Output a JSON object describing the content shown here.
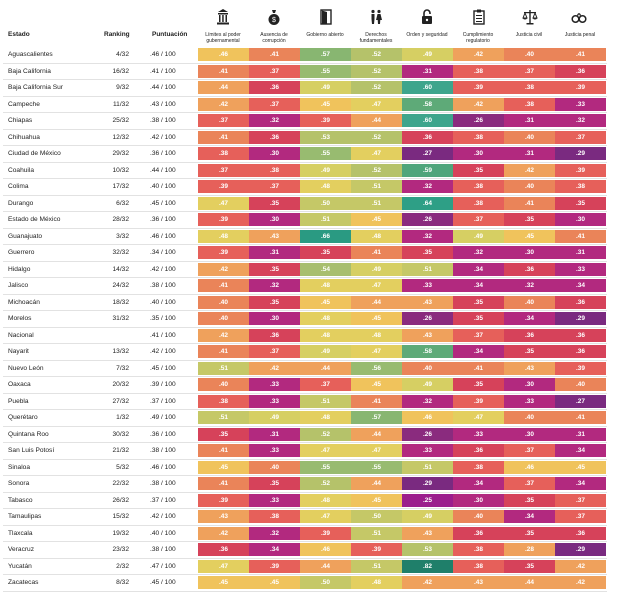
{
  "headers": {
    "estado": "Estado",
    "ranking": "Ranking",
    "puntuacion": "Puntuación"
  },
  "columns": [
    {
      "icon": "government-building-icon",
      "name": "Límites al poder gubernamental"
    },
    {
      "icon": "money-bag-icon",
      "name": "Ausencia de corrupción"
    },
    {
      "icon": "open-door-icon",
      "name": "Gobierno abierto"
    },
    {
      "icon": "people-icon",
      "name": "Derechos fundamentales"
    },
    {
      "icon": "padlock-icon",
      "name": "Orden y seguridad"
    },
    {
      "icon": "clipboard-checklist-icon",
      "name": "Cumplimiento regulatorio"
    },
    {
      "icon": "scales-icon",
      "name": "Justicia civil"
    },
    {
      "icon": "handcuffs-icon",
      "name": "Justicia penal"
    }
  ],
  "palette": {
    "0.25": "#9b1d8c",
    "0.26": "#8a2b7e",
    "0.27": "#7a2a80",
    "0.29": "#7a2a80",
    "0.30": "#b2297f",
    "0.31": "#b2297f",
    "0.32": "#b2297f",
    "0.33": "#b2297f",
    "0.34": "#b2297f",
    "0.35": "#d6425a",
    "0.36": "#d6425a",
    "0.37": "#e6605a",
    "0.38": "#e6605a",
    "0.39": "#e6605a",
    "0.40": "#ea8459",
    "0.41": "#ea8459",
    "0.42": "#efa15c",
    "0.43": "#efa15c",
    "0.44": "#efa15c",
    "0.45": "#f0c35c",
    "0.46": "#f0c35c",
    "0.47": "#e3cf5f",
    "0.48": "#e3cf5f",
    "0.49": "#d6cf63",
    "0.50": "#c5c867",
    "0.51": "#c5c867",
    "0.52": "#b5c26a",
    "0.53": "#b5c26a",
    "0.54": "#a8be6e",
    "0.55": "#98bb70",
    "0.56": "#98bb70",
    "0.57": "#88b671",
    "0.58": "#5eaa78",
    "0.59": "#4fa57b",
    "0.60": "#3ea58c",
    "0.64": "#2e9f86",
    "0.66": "#2a9a82",
    "0.82": "#1f7f6a"
  },
  "rows": [
    {
      "estado": "Aguascalientes",
      "ranking": "4/32",
      "punt": ".46 / 100",
      "scores": [
        ".46",
        ".41",
        ".57",
        ".52",
        ".49",
        ".42",
        ".40",
        ".41"
      ]
    },
    {
      "estado": "Baja California",
      "ranking": "16/32",
      "punt": ".41 / 100",
      "scores": [
        ".41",
        ".37",
        ".55",
        ".52",
        ".31",
        ".38",
        ".37",
        ".36"
      ]
    },
    {
      "estado": "Baja California Sur",
      "ranking": "9/32",
      "punt": ".44 / 100",
      "scores": [
        ".44",
        ".36",
        ".49",
        ".52",
        ".60",
        ".39",
        ".38",
        ".39"
      ]
    },
    {
      "estado": "Campeche",
      "ranking": "11/32",
      "punt": ".43 / 100",
      "scores": [
        ".42",
        ".37",
        ".45",
        ".47",
        ".58",
        ".42",
        ".38",
        ".33"
      ]
    },
    {
      "estado": "Chiapas",
      "ranking": "25/32",
      "punt": ".38 / 100",
      "scores": [
        ".37",
        ".32",
        ".39",
        ".44",
        ".60",
        ".26",
        ".31",
        ".32"
      ]
    },
    {
      "estado": "Chihuahua",
      "ranking": "12/32",
      "punt": ".42 / 100",
      "scores": [
        ".41",
        ".36",
        ".53",
        ".52",
        ".36",
        ".38",
        ".40",
        ".37"
      ]
    },
    {
      "estado": "Ciudad de México",
      "ranking": "29/32",
      "punt": ".36 / 100",
      "scores": [
        ".38",
        ".30",
        ".55",
        ".47",
        ".27",
        ".30",
        ".31",
        ".29"
      ]
    },
    {
      "estado": "Coahuila",
      "ranking": "10/32",
      "punt": ".44 / 100",
      "scores": [
        ".37",
        ".38",
        ".49",
        ".52",
        ".59",
        ".35",
        ".42",
        ".39"
      ]
    },
    {
      "estado": "Colima",
      "ranking": "17/32",
      "punt": ".40 / 100",
      "scores": [
        ".39",
        ".37",
        ".48",
        ".51",
        ".32",
        ".38",
        ".40",
        ".38"
      ]
    },
    {
      "estado": "Durango",
      "ranking": "6/32",
      "punt": ".45 / 100",
      "scores": [
        ".47",
        ".35",
        ".50",
        ".51",
        ".64",
        ".38",
        ".41",
        ".35"
      ]
    },
    {
      "estado": "Estado de México",
      "ranking": "28/32",
      "punt": ".36 / 100",
      "scores": [
        ".39",
        ".30",
        ".51",
        ".45",
        ".26",
        ".37",
        ".35",
        ".30"
      ]
    },
    {
      "estado": "Guanajuato",
      "ranking": "3/32",
      "punt": ".46 / 100",
      "scores": [
        ".48",
        ".43",
        ".66",
        ".48",
        ".32",
        ".49",
        ".45",
        ".41"
      ]
    },
    {
      "estado": "Guerrero",
      "ranking": "32/32",
      "punt": ".34 / 100",
      "scores": [
        ".39",
        ".31",
        ".35",
        ".41",
        ".35",
        ".32",
        ".30",
        ".31"
      ]
    },
    {
      "estado": "Hidalgo",
      "ranking": "14/32",
      "punt": ".42 / 100",
      "scores": [
        ".42",
        ".35",
        ".54",
        ".49",
        ".51",
        ".34",
        ".36",
        ".33"
      ]
    },
    {
      "estado": "Jalisco",
      "ranking": "24/32",
      "punt": ".38 / 100",
      "scores": [
        ".41",
        ".32",
        ".48",
        ".47",
        ".33",
        ".34",
        ".32",
        ".34"
      ]
    },
    {
      "estado": "Michoacán",
      "ranking": "18/32",
      "punt": ".40 / 100",
      "scores": [
        ".40",
        ".35",
        ".45",
        ".44",
        ".43",
        ".35",
        ".40",
        ".36"
      ]
    },
    {
      "estado": "Morelos",
      "ranking": "31/32",
      "punt": ".35 / 100",
      "scores": [
        ".40",
        ".30",
        ".48",
        ".45",
        ".26",
        ".35",
        ".34",
        ".29"
      ]
    },
    {
      "estado": "Nacional",
      "ranking": "",
      "punt": ".41 / 100",
      "scores": [
        ".42",
        ".36",
        ".48",
        ".48",
        ".43",
        ".37",
        ".36",
        ".36"
      ]
    },
    {
      "estado": "Nayarit",
      "ranking": "13/32",
      "punt": ".42 / 100",
      "scores": [
        ".41",
        ".37",
        ".49",
        ".47",
        ".58",
        ".34",
        ".35",
        ".36"
      ]
    },
    {
      "estado": "Nuevo León",
      "ranking": "7/32",
      "punt": ".45 / 100",
      "scores": [
        ".51",
        ".42",
        ".44",
        ".56",
        ".40",
        ".41",
        ".43",
        ".39"
      ]
    },
    {
      "estado": "Oaxaca",
      "ranking": "20/32",
      "punt": ".39 / 100",
      "scores": [
        ".40",
        ".33",
        ".37",
        ".45",
        ".49",
        ".35",
        ".30",
        ".40"
      ]
    },
    {
      "estado": "Puebla",
      "ranking": "27/32",
      "punt": ".37 / 100",
      "scores": [
        ".38",
        ".33",
        ".51",
        ".41",
        ".32",
        ".39",
        ".33",
        ".27"
      ]
    },
    {
      "estado": "Querétaro",
      "ranking": "1/32",
      "punt": ".49 / 100",
      "scores": [
        ".51",
        ".49",
        ".48",
        ".57",
        ".46",
        ".47",
        ".40",
        ".41"
      ]
    },
    {
      "estado": "Quintana Roo",
      "ranking": "30/32",
      "punt": ".36 / 100",
      "scores": [
        ".35",
        ".31",
        ".52",
        ".44",
        ".26",
        ".33",
        ".30",
        ".31"
      ]
    },
    {
      "estado": "San Luis Potosí",
      "ranking": "21/32",
      "punt": ".38 / 100",
      "scores": [
        ".41",
        ".33",
        ".47",
        ".47",
        ".33",
        ".36",
        ".37",
        ".34"
      ]
    },
    {
      "estado": "Sinaloa",
      "ranking": "5/32",
      "punt": ".46 / 100",
      "scores": [
        ".45",
        ".40",
        ".55",
        ".55",
        ".51",
        ".38",
        ".46",
        ".45"
      ]
    },
    {
      "estado": "Sonora",
      "ranking": "22/32",
      "punt": ".38 / 100",
      "scores": [
        ".41",
        ".35",
        ".52",
        ".44",
        ".29",
        ".34",
        ".37",
        ".34"
      ]
    },
    {
      "estado": "Tabasco",
      "ranking": "26/32",
      "punt": ".37 / 100",
      "scores": [
        ".39",
        ".33",
        ".48",
        ".45",
        ".25",
        ".30",
        ".35",
        ".37"
      ]
    },
    {
      "estado": "Tamaulipas",
      "ranking": "15/32",
      "punt": ".42 / 100",
      "scores": [
        ".43",
        ".38",
        ".47",
        ".50",
        ".49",
        ".40",
        ".34",
        ".37"
      ]
    },
    {
      "estado": "Tlaxcala",
      "ranking": "19/32",
      "punt": ".40 / 100",
      "scores": [
        ".42",
        ".32",
        ".39",
        ".51",
        ".43",
        ".36",
        ".35",
        ".36"
      ]
    },
    {
      "estado": "Veracruz",
      "ranking": "23/32",
      "punt": ".38 / 100",
      "scores": [
        ".36",
        ".34",
        ".46",
        ".39",
        ".53",
        ".38",
        ".28",
        ".29"
      ]
    },
    {
      "estado": "Yucatán",
      "ranking": "2/32",
      "punt": ".47 / 100",
      "scores": [
        ".47",
        ".39",
        ".44",
        ".51",
        ".82",
        ".38",
        ".35",
        ".42"
      ]
    },
    {
      "estado": "Zacatecas",
      "ranking": "8/32",
      "punt": ".45 / 100",
      "scores": [
        ".45",
        ".45",
        ".50",
        ".48",
        ".42",
        ".43",
        ".44",
        ".42"
      ]
    }
  ]
}
